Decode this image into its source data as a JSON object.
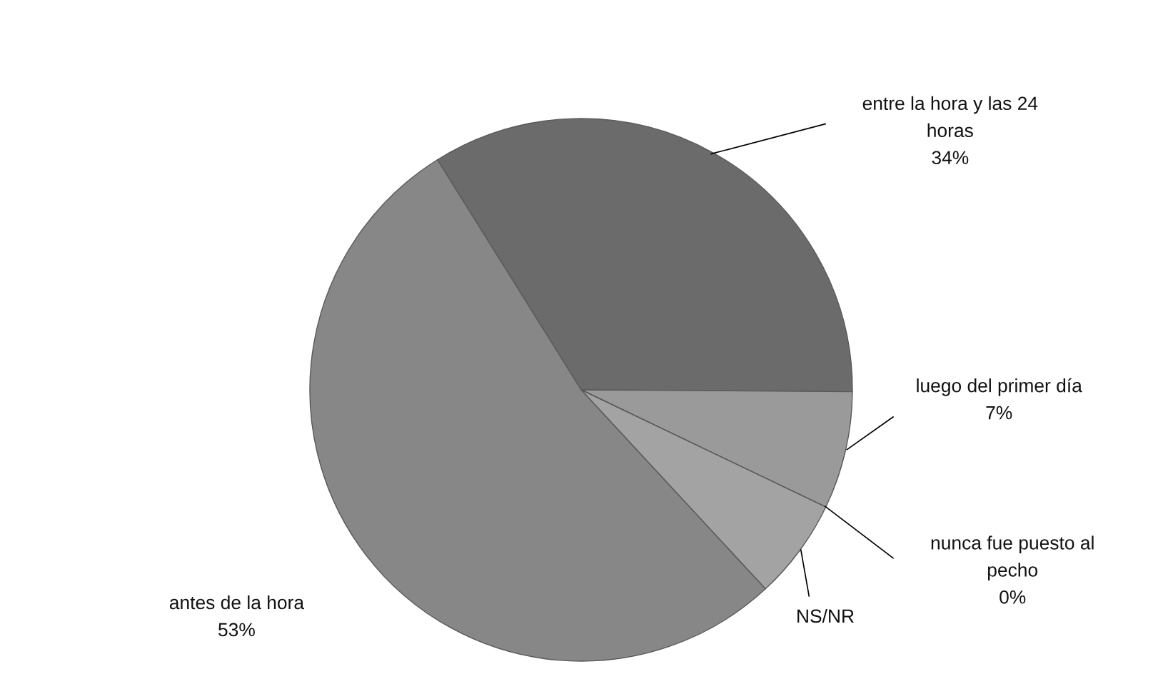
{
  "chart_data": {
    "type": "pie",
    "categories": [
      "entre la hora y las 24 horas",
      "luego del primer día",
      "nunca fue puesto al pecho",
      "NS/NR",
      "antes de la hora"
    ],
    "values": [
      34,
      7,
      0,
      6,
      53
    ],
    "value_labels": [
      "34%",
      "7%",
      "0%",
      null,
      "53%"
    ],
    "colors": [
      "#6b6b6b",
      "#9a9a9a",
      "#8f8f8f",
      "#a3a3a3",
      "#878787"
    ],
    "legend": false
  }
}
